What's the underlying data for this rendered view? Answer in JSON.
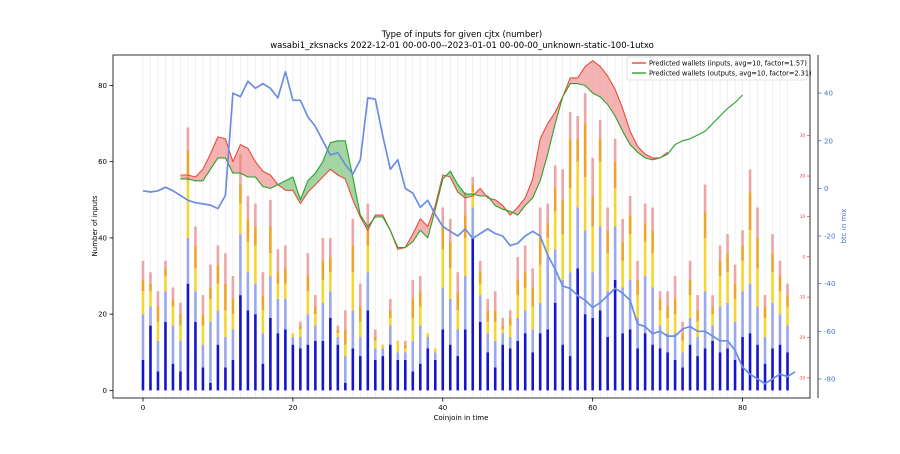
{
  "chart_data": {
    "type": "bar",
    "title": "Type of inputs for given cjtx (number)",
    "subtitle": "wasabi1_zksnacks 2022-12-01 00-00-00--2023-01-01 00-00-00_unknown-static-100-1utxo",
    "xlabel": "Coinjoin in time",
    "ylabel": "Number of inputs",
    "y2label": "btc in mix",
    "xlim": [
      -4,
      89
    ],
    "ylim": [
      -2,
      88
    ],
    "y2lim": [
      -88,
      56
    ],
    "xticks": [
      0,
      20,
      40,
      60,
      80
    ],
    "yticks": [
      0,
      20,
      40,
      60,
      80
    ],
    "y2ticks": [
      -80,
      -60,
      -40,
      -20,
      0,
      20,
      40
    ],
    "y3ticks": [
      -30,
      -20,
      -10,
      0,
      10,
      20,
      30
    ],
    "y3lim": [
      -35,
      50
    ],
    "grid": "vertical",
    "legend_position": "top-right",
    "colors": {
      "fresh": "#1515cc",
      "light_blue": "#9aa8ee",
      "yellow": "#f5d631",
      "orange": "#f0a32a",
      "pink": "#eda5a5",
      "dark_red": "#8b1a1a",
      "inputs_line": "#e74c3c",
      "outputs_line": "#2ca02c",
      "btc_line": "#6b8ee0",
      "red_fill": "#f08080",
      "green_fill": "#66bb66",
      "y2_color": "#4a6fd0",
      "y3_color": "#e03c3c"
    },
    "stacks": [
      [
        8,
        12,
        6,
        3,
        5,
        0
      ],
      [
        17,
        5,
        4,
        2,
        3,
        0
      ],
      [
        5,
        8,
        5,
        4,
        4,
        0
      ],
      [
        18,
        8,
        4,
        2,
        2,
        0
      ],
      [
        7,
        10,
        5,
        2,
        3,
        0
      ],
      [
        5,
        8,
        4,
        3,
        3,
        0
      ],
      [
        28,
        12,
        15,
        8,
        6,
        0
      ],
      [
        18,
        8,
        6,
        6,
        5,
        0
      ],
      [
        6,
        6,
        5,
        3,
        5,
        0
      ],
      [
        2,
        16,
        6,
        3,
        6,
        0
      ],
      [
        12,
        9,
        7,
        5,
        5,
        0
      ],
      [
        6,
        8,
        7,
        7,
        8,
        0
      ],
      [
        8,
        8,
        4,
        4,
        6,
        0
      ],
      [
        25,
        16,
        8,
        5,
        8,
        0
      ],
      [
        21,
        10,
        8,
        6,
        6,
        0
      ],
      [
        20,
        8,
        10,
        5,
        6,
        0
      ],
      [
        7,
        8,
        6,
        4,
        6,
        0
      ],
      [
        19,
        11,
        6,
        7,
        7,
        0
      ],
      [
        15,
        9,
        4,
        3,
        6,
        0
      ],
      [
        16,
        8,
        4,
        4,
        6,
        0
      ],
      [
        12,
        2,
        1,
        0,
        0,
        0
      ],
      [
        11,
        3,
        2,
        1,
        1,
        0
      ],
      [
        12,
        8,
        6,
        4,
        6,
        0
      ],
      [
        13,
        4,
        3,
        2,
        3,
        0
      ],
      [
        13,
        10,
        6,
        5,
        6,
        0
      ],
      [
        19,
        7,
        5,
        4,
        5,
        0
      ],
      [
        12,
        2,
        1,
        1,
        1,
        0
      ],
      [
        2,
        7,
        3,
        4,
        5,
        0
      ],
      [
        11,
        10,
        10,
        7,
        7,
        0
      ],
      [
        9,
        5,
        4,
        4,
        6,
        0
      ],
      [
        21,
        10,
        7,
        5,
        6,
        0
      ],
      [
        8,
        3,
        2,
        1,
        2,
        0
      ],
      [
        9,
        2,
        1,
        0,
        0,
        0
      ],
      [
        12,
        5,
        2,
        2,
        3,
        0
      ],
      [
        8,
        2,
        3,
        0,
        0,
        0
      ],
      [
        8,
        2,
        1,
        1,
        1,
        0
      ],
      [
        5,
        8,
        6,
        5,
        5,
        0
      ],
      [
        7,
        10,
        5,
        4,
        4,
        0
      ],
      [
        11,
        3,
        1,
        0,
        0,
        0
      ],
      [
        8,
        2,
        1,
        0,
        0,
        0
      ],
      [
        16,
        11,
        10,
        6,
        5,
        0
      ],
      [
        12,
        12,
        8,
        7,
        6,
        0
      ],
      [
        9,
        7,
        5,
        5,
        5,
        0
      ],
      [
        16,
        14,
        10,
        6,
        6,
        0
      ],
      [
        40,
        8,
        4,
        2,
        2,
        0
      ],
      [
        18,
        7,
        3,
        3,
        3,
        0
      ],
      [
        10,
        5,
        3,
        3,
        3,
        0
      ],
      [
        6,
        7,
        5,
        3,
        5,
        0
      ],
      [
        12,
        3,
        1,
        1,
        2,
        0
      ],
      [
        11,
        3,
        3,
        2,
        2,
        0
      ],
      [
        13,
        6,
        6,
        4,
        6,
        0
      ],
      [
        15,
        6,
        6,
        4,
        7,
        0
      ],
      [
        10,
        6,
        6,
        5,
        5,
        0
      ],
      [
        15,
        8,
        10,
        7,
        8,
        0
      ],
      [
        16,
        19,
        5,
        4,
        5,
        0
      ],
      [
        23,
        14,
        10,
        6,
        6,
        0
      ],
      [
        12,
        17,
        12,
        9,
        8,
        0
      ],
      [
        9,
        22,
        22,
        13,
        7,
        0
      ],
      [
        32,
        16,
        12,
        6,
        6,
        0
      ],
      [
        20,
        22,
        14,
        14,
        8,
        0
      ],
      [
        19,
        12,
        12,
        8,
        10,
        0
      ],
      [
        21,
        22,
        17,
        6,
        5,
        0
      ],
      [
        14,
        12,
        10,
        6,
        6,
        0
      ],
      [
        29,
        14,
        10,
        7,
        6,
        0
      ],
      [
        15,
        12,
        7,
        5,
        6,
        0
      ],
      [
        16,
        13,
        12,
        5,
        5,
        0
      ],
      [
        11,
        8,
        6,
        4,
        5,
        0
      ],
      [
        15,
        15,
        9,
        5,
        5,
        0
      ],
      [
        12,
        15,
        9,
        6,
        6,
        0
      ],
      [
        11,
        6,
        4,
        3,
        2,
        0
      ],
      [
        10,
        5,
        4,
        3,
        4,
        0
      ],
      [
        8,
        7,
        5,
        4,
        6,
        0
      ],
      [
        6,
        4,
        3,
        2,
        3,
        0
      ],
      [
        12,
        7,
        6,
        4,
        5,
        0
      ],
      [
        9,
        5,
        4,
        3,
        4,
        0
      ],
      [
        11,
        15,
        14,
        7,
        7,
        0
      ],
      [
        13,
        4,
        3,
        2,
        3,
        0
      ],
      [
        10,
        12,
        8,
        4,
        4,
        0
      ],
      [
        11,
        12,
        8,
        5,
        5,
        0
      ],
      [
        8,
        10,
        6,
        4,
        5,
        0
      ],
      [
        14,
        12,
        8,
        4,
        4,
        0
      ],
      [
        15,
        13,
        14,
        10,
        6,
        0
      ],
      [
        12,
        10,
        10,
        8,
        8,
        0
      ],
      [
        7,
        7,
        5,
        3,
        3,
        0
      ],
      [
        11,
        12,
        8,
        5,
        5,
        0
      ],
      [
        12,
        8,
        6,
        4,
        4,
        0
      ],
      [
        10,
        7,
        5,
        3,
        3,
        0
      ]
    ],
    "series": [
      {
        "name": "Predicted wallets (inputs, avg=10, factor=1.57)",
        "values": [
          null,
          null,
          null,
          null,
          null,
          56.5,
          56.5,
          56,
          58,
          62,
          66.5,
          66,
          60,
          64.5,
          63.5,
          60,
          57.5,
          56.5,
          54,
          52.5,
          52.5,
          49,
          52,
          54,
          56,
          58,
          56.5,
          55.5,
          50,
          45.5,
          42,
          46,
          46,
          42,
          37,
          37.5,
          41,
          45,
          43,
          48.5,
          56.5,
          56,
          52,
          50.5,
          51,
          53,
          50.5,
          50,
          48.5,
          46,
          48,
          50.5,
          55.5,
          66,
          70,
          73,
          77,
          82,
          82,
          85,
          86.5,
          85,
          82.5,
          79,
          74,
          68,
          64,
          62,
          61,
          61,
          62.5,
          null,
          null,
          null,
          null,
          null,
          null,
          null,
          null,
          null,
          null,
          null,
          null,
          null,
          null,
          null,
          null
        ]
      },
      {
        "name": "Predicted wallets (outputs, avg=10, factor=2.31)",
        "values": [
          null,
          null,
          null,
          null,
          null,
          55.5,
          55.5,
          55,
          55,
          58,
          61,
          61,
          57,
          57,
          56,
          56,
          53.5,
          53,
          54,
          55,
          56,
          50,
          55,
          57,
          60,
          65,
          65.5,
          65.5,
          56,
          46,
          43,
          45.5,
          45.5,
          42,
          37.5,
          37.5,
          39,
          42,
          40,
          47.5,
          55.5,
          57.5,
          54,
          51.5,
          51.5,
          51,
          51,
          48.5,
          47.5,
          47,
          46,
          48.5,
          50.5,
          55,
          62,
          70,
          77,
          80.5,
          80.5,
          80,
          78,
          77,
          75,
          72,
          68,
          64.5,
          62.5,
          61,
          60.5,
          61,
          62,
          64.5,
          65.5,
          66,
          67,
          68,
          70,
          72,
          74,
          75.5,
          77.5,
          null,
          null,
          null,
          null,
          null,
          null
        ]
      },
      {
        "name": "btc in mix",
        "values": [
          -1,
          -1.5,
          -1,
          0.5,
          -1,
          -3,
          -5,
          -6,
          -6.5,
          -7,
          -8.5,
          -3,
          40,
          38.5,
          45,
          42,
          44,
          42,
          38,
          49,
          37,
          37,
          30,
          26,
          20,
          14,
          15,
          10,
          6,
          12,
          38,
          37.5,
          22,
          8,
          12,
          0,
          -2,
          -8,
          -5,
          -11,
          -16,
          -18,
          -20,
          -17,
          -21,
          -19,
          -17,
          -19,
          -20,
          -24,
          -23,
          -20,
          -18,
          -20,
          -28,
          -34,
          -41,
          -42,
          -45,
          -47,
          -50,
          -48,
          -45,
          -42,
          -44,
          -47,
          -57,
          -58,
          -61,
          -60,
          -62,
          -62,
          -59,
          -58,
          -60,
          -60,
          -62,
          -64,
          -64,
          -68,
          -75,
          -78,
          -80,
          -82,
          -80,
          -78,
          -79,
          -77
        ]
      }
    ],
    "legend": [
      "Predicted wallets (inputs, avg=10, factor=1.57)",
      "Predicted wallets (outputs, avg=10, factor=2.31)"
    ]
  }
}
